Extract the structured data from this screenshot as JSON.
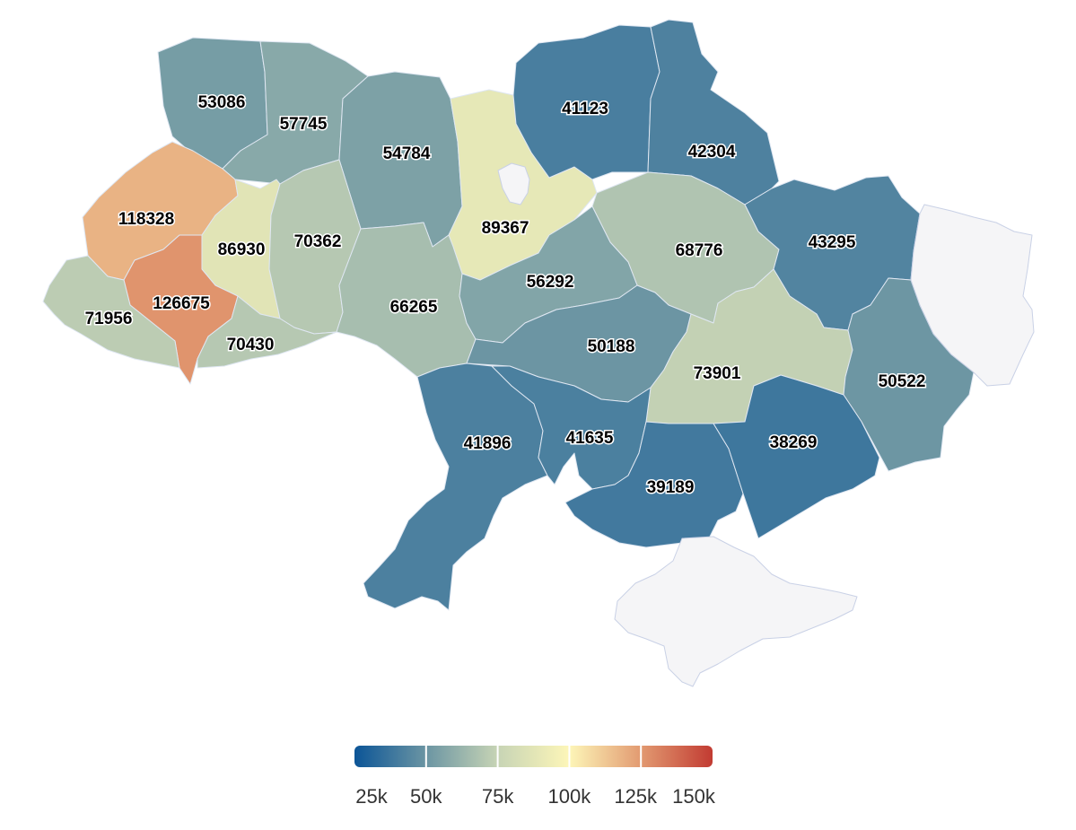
{
  "map": {
    "colors": {
      "no_data": "#f5f5f7",
      "scale": [
        "#0c5597",
        "#6b95a3",
        "#c7d4b5",
        "#fdf6b8",
        "#e29a71",
        "#c23b32"
      ]
    },
    "regions": [
      {
        "value": 53086
      },
      {
        "value": 57745
      },
      {
        "value": 54784
      },
      {
        "value": 89367
      },
      {
        "value": 41123
      },
      {
        "value": 42304
      },
      {
        "value": 118328
      },
      {
        "value": 86930
      },
      {
        "value": 70362
      },
      {
        "value": 68776
      },
      {
        "value": 43295
      },
      {
        "value": 126675
      },
      {
        "value": 71956
      },
      {
        "value": 70430
      },
      {
        "value": 66265
      },
      {
        "value": 56292
      },
      {
        "value": 50188
      },
      {
        "value": 73901
      },
      {
        "value": 50522
      },
      {
        "value": 41896
      },
      {
        "value": 41635
      },
      {
        "value": 39189
      },
      {
        "value": 38269
      },
      {
        "value": null
      },
      {
        "value": null
      },
      {
        "value": null
      }
    ]
  },
  "legend": {
    "min": 25000,
    "max": 150000,
    "ticks": [
      {
        "value": 25000,
        "label": "25k"
      },
      {
        "value": 50000,
        "label": "50k"
      },
      {
        "value": 75000,
        "label": "75k"
      },
      {
        "value": 100000,
        "label": "100k"
      },
      {
        "value": 125000,
        "label": "125k"
      },
      {
        "value": 150000,
        "label": "150k"
      }
    ]
  }
}
